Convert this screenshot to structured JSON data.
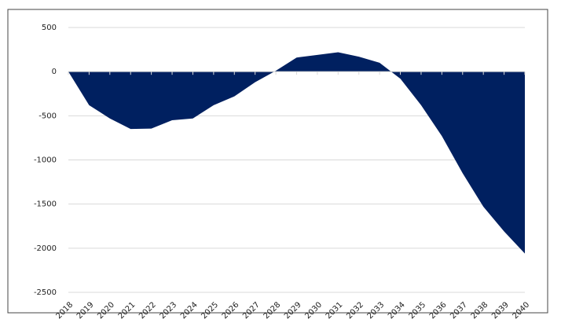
{
  "chart_data": {
    "type": "area",
    "color": "#002060",
    "x": [
      2018,
      2019,
      2020,
      2021,
      2022,
      2023,
      2024,
      2025,
      2026,
      2027,
      2028,
      2029,
      2030,
      2031,
      2032,
      2033,
      2034,
      2035,
      2036,
      2037,
      2038,
      2039,
      2040
    ],
    "values": [
      0,
      -380,
      -530,
      -650,
      -645,
      -550,
      -530,
      -380,
      -280,
      -120,
      10,
      160,
      190,
      220,
      170,
      100,
      -80,
      -380,
      -730,
      -1150,
      -1530,
      -1810,
      -2060
    ],
    "xlim": [
      2018,
      2040
    ],
    "ylim": [
      -2500,
      500
    ],
    "yticks": [
      -2500,
      -2000,
      -1500,
      -1000,
      -500,
      0,
      500
    ],
    "grid": true
  }
}
